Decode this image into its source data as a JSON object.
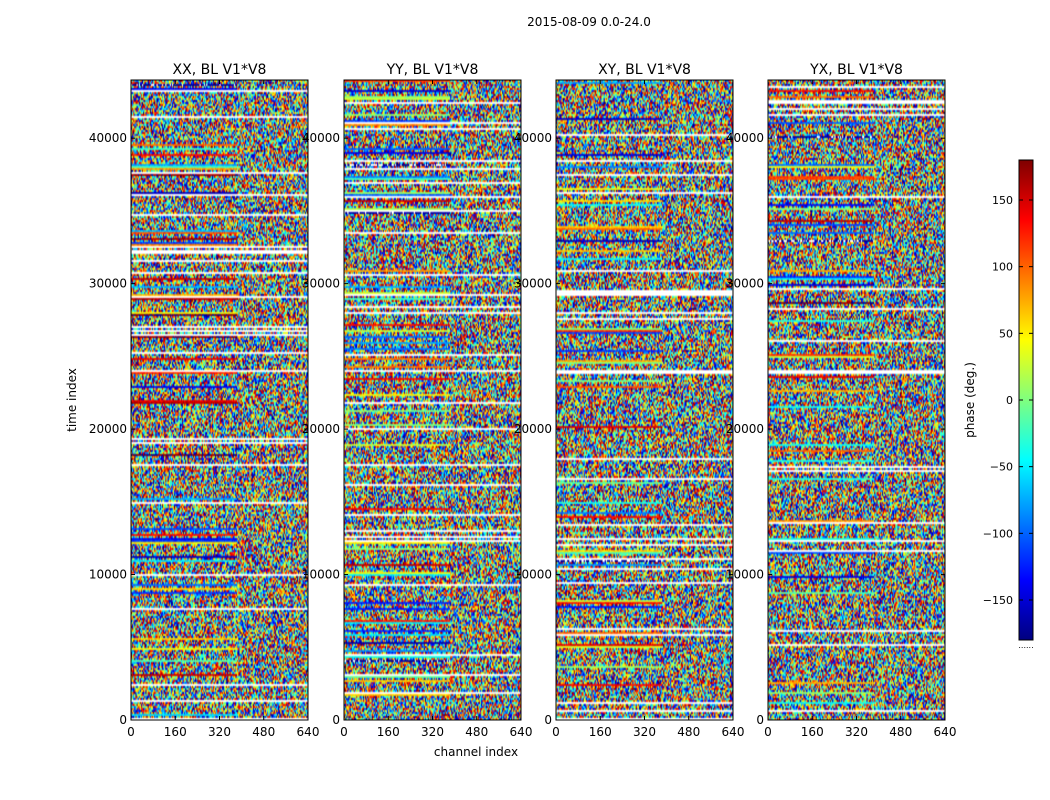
{
  "chart_data": {
    "type": "heatmap",
    "title": "2015-08-09 0.0-24.0",
    "xlabel": "channel index",
    "ylabel": "time index",
    "xlim": [
      0,
      640
    ],
    "ylim": [
      0,
      44000
    ],
    "x_ticks": [
      0,
      160,
      320,
      480,
      640
    ],
    "y_ticks": [
      0,
      10000,
      20000,
      30000,
      40000
    ],
    "panels": [
      {
        "title": "XX, BL V1*V8"
      },
      {
        "title": "YY, BL V1*V8"
      },
      {
        "title": "XY, BL V1*V8"
      },
      {
        "title": "YX, BL V1*V8"
      }
    ],
    "colorbar": {
      "label": "phase (deg.)",
      "colormap": "jet",
      "range": [
        -180,
        180
      ],
      "ticks": [
        -150,
        -100,
        -50,
        0,
        50,
        100,
        150
      ],
      "extra_label": "......"
    },
    "colors": {
      "jet_stops": [
        "#00007f",
        "#0000ff",
        "#007fff",
        "#00ffff",
        "#7fff7f",
        "#ffff00",
        "#ff7f00",
        "#ff0000",
        "#7f0000"
      ]
    }
  }
}
